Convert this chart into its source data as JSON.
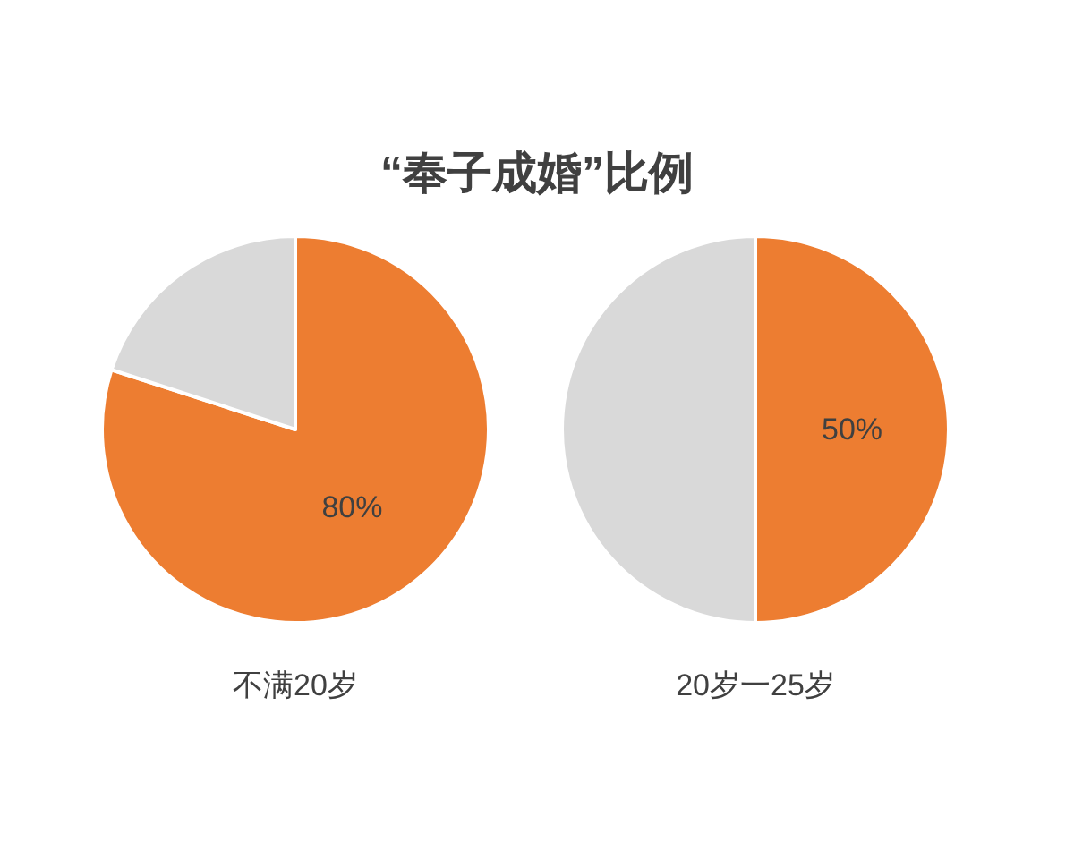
{
  "chart_data": [
    {
      "type": "pie",
      "title": "“奉子成婚”比例",
      "xlabel": "不满20岁",
      "categories": [
        null,
        null
      ],
      "values": [
        80,
        20
      ],
      "colors": [
        "#ed7d31",
        "#d9d9d9"
      ],
      "value_labels": [
        "80%",
        null
      ]
    },
    {
      "type": "pie",
      "xlabel": "20岁一25岁",
      "categories": [
        null,
        null
      ],
      "values": [
        50,
        50
      ],
      "colors": [
        "#ed7d31",
        "#d9d9d9"
      ],
      "value_labels": [
        "50%",
        null
      ]
    }
  ]
}
